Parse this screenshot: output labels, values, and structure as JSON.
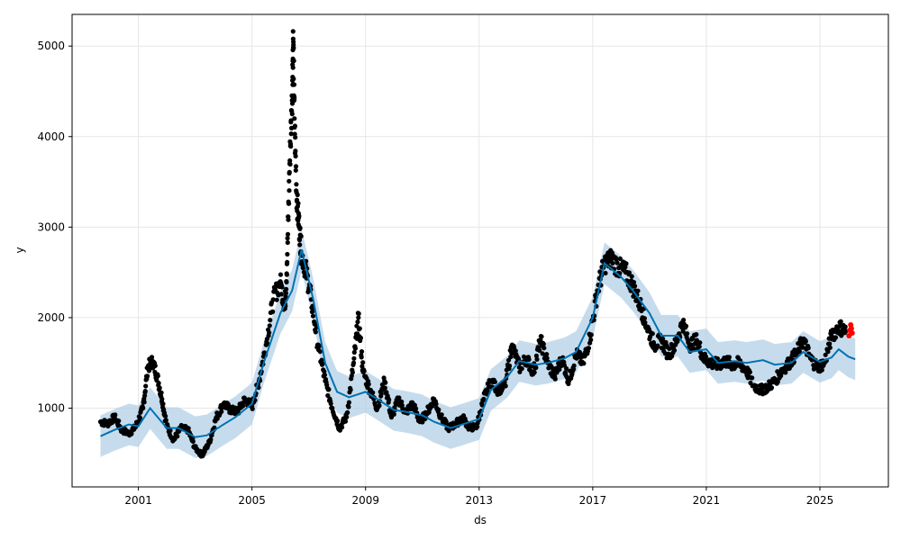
{
  "chart_data": {
    "type": "scatter",
    "xlabel": "ds",
    "ylabel": "y",
    "x_range": [
      "1998-09-01",
      "2027-06-01"
    ],
    "y_range": [
      130,
      5350
    ],
    "x_ticks": [
      {
        "date": "2001-01-01",
        "label": "2001"
      },
      {
        "date": "2005-01-01",
        "label": "2005"
      },
      {
        "date": "2009-01-01",
        "label": "2009"
      },
      {
        "date": "2013-01-01",
        "label": "2013"
      },
      {
        "date": "2017-01-01",
        "label": "2017"
      },
      {
        "date": "2021-01-01",
        "label": "2021"
      },
      {
        "date": "2025-01-01",
        "label": "2025"
      }
    ],
    "y_ticks": [
      1000,
      2000,
      3000,
      4000,
      5000
    ],
    "grid": true,
    "legend": "none",
    "colors": {
      "observed": "#000000",
      "forecast_line": "#0072B2",
      "uncertainty_band": "#AECDE6",
      "recent_points": "#FF0000",
      "grid": "#E6E6E6"
    },
    "series": [
      {
        "name": "",
        "kind": "forecast",
        "points": [
          [
            "1999-09-01",
            690
          ],
          [
            "2000-03-01",
            760
          ],
          [
            "2000-09-01",
            820
          ],
          [
            "2001-01-01",
            800
          ],
          [
            "2001-06-01",
            1000
          ],
          [
            "2002-01-01",
            780
          ],
          [
            "2002-06-01",
            780
          ],
          [
            "2003-01-01",
            680
          ],
          [
            "2003-06-01",
            700
          ],
          [
            "2004-01-01",
            820
          ],
          [
            "2004-06-01",
            900
          ],
          [
            "2005-01-01",
            1050
          ],
          [
            "2005-06-01",
            1500
          ],
          [
            "2006-01-01",
            2050
          ],
          [
            "2006-06-01",
            2300
          ],
          [
            "2006-10-01",
            2750
          ],
          [
            "2007-03-01",
            2200
          ],
          [
            "2007-08-01",
            1500
          ],
          [
            "2008-01-01",
            1180
          ],
          [
            "2008-06-01",
            1120
          ],
          [
            "2009-01-01",
            1180
          ],
          [
            "2009-06-01",
            1100
          ],
          [
            "2010-01-01",
            980
          ],
          [
            "2010-06-01",
            960
          ],
          [
            "2011-01-01",
            920
          ],
          [
            "2011-06-01",
            850
          ],
          [
            "2012-01-01",
            780
          ],
          [
            "2012-06-01",
            820
          ],
          [
            "2013-01-01",
            880
          ],
          [
            "2013-06-01",
            1200
          ],
          [
            "2014-01-01",
            1350
          ],
          [
            "2014-06-01",
            1520
          ],
          [
            "2015-01-01",
            1480
          ],
          [
            "2015-06-01",
            1500
          ],
          [
            "2016-01-01",
            1550
          ],
          [
            "2016-06-01",
            1620
          ],
          [
            "2017-01-01",
            2000
          ],
          [
            "2017-06-01",
            2600
          ],
          [
            "2018-01-01",
            2450
          ],
          [
            "2018-06-01",
            2300
          ],
          [
            "2019-01-01",
            2050
          ],
          [
            "2019-06-01",
            1800
          ],
          [
            "2020-01-01",
            1800
          ],
          [
            "2020-06-01",
            1620
          ],
          [
            "2021-01-01",
            1650
          ],
          [
            "2021-06-01",
            1500
          ],
          [
            "2022-01-01",
            1520
          ],
          [
            "2022-06-01",
            1500
          ],
          [
            "2023-01-01",
            1530
          ],
          [
            "2023-06-01",
            1480
          ],
          [
            "2024-01-01",
            1500
          ],
          [
            "2024-06-01",
            1620
          ],
          [
            "2025-01-01",
            1510
          ],
          [
            "2025-06-01",
            1560
          ],
          [
            "2025-09-01",
            1650
          ],
          [
            "2026-01-01",
            1570
          ],
          [
            "2026-04-01",
            1540
          ]
        ],
        "band_width": 230
      },
      {
        "name": "",
        "kind": "observed",
        "points": [
          [
            "1999-09-01",
            850
          ],
          [
            "1999-12-01",
            830
          ],
          [
            "2000-03-01",
            900
          ],
          [
            "2000-06-01",
            760
          ],
          [
            "2000-09-01",
            720
          ],
          [
            "2000-12-01",
            800
          ],
          [
            "2001-03-01",
            1000
          ],
          [
            "2001-05-01",
            1450
          ],
          [
            "2001-07-01",
            1520
          ],
          [
            "2001-09-01",
            1350
          ],
          [
            "2001-11-01",
            1100
          ],
          [
            "2002-01-01",
            800
          ],
          [
            "2002-04-01",
            650
          ],
          [
            "2002-07-01",
            780
          ],
          [
            "2002-10-01",
            760
          ],
          [
            "2003-01-01",
            560
          ],
          [
            "2003-04-01",
            480
          ],
          [
            "2003-07-01",
            620
          ],
          [
            "2003-10-01",
            900
          ],
          [
            "2004-01-01",
            1050
          ],
          [
            "2004-04-01",
            980
          ],
          [
            "2004-07-01",
            960
          ],
          [
            "2004-10-01",
            1100
          ],
          [
            "2005-01-01",
            1020
          ],
          [
            "2005-04-01",
            1300
          ],
          [
            "2005-07-01",
            1700
          ],
          [
            "2005-10-01",
            2200
          ],
          [
            "2006-01-01",
            2400
          ],
          [
            "2006-03-01",
            2100
          ],
          [
            "2006-04-01",
            2700
          ],
          [
            "2006-05-01",
            3700
          ],
          [
            "2006-06-01",
            4400
          ],
          [
            "2006-06-15",
            5080
          ],
          [
            "2006-07-01",
            4200
          ],
          [
            "2006-08-01",
            3300
          ],
          [
            "2006-09-01",
            3000
          ],
          [
            "2006-10-01",
            2700
          ],
          [
            "2006-12-01",
            2500
          ],
          [
            "2007-02-01",
            2200
          ],
          [
            "2007-05-01",
            1700
          ],
          [
            "2007-08-01",
            1300
          ],
          [
            "2007-11-01",
            1000
          ],
          [
            "2008-02-01",
            780
          ],
          [
            "2008-05-01",
            900
          ],
          [
            "2008-08-01",
            1500
          ],
          [
            "2008-10-01",
            2000
          ],
          [
            "2008-12-01",
            1400
          ],
          [
            "2009-03-01",
            1200
          ],
          [
            "2009-06-01",
            1000
          ],
          [
            "2009-09-01",
            1300
          ],
          [
            "2009-12-01",
            900
          ],
          [
            "2010-03-01",
            1100
          ],
          [
            "2010-06-01",
            950
          ],
          [
            "2010-09-01",
            1050
          ],
          [
            "2010-12-01",
            850
          ],
          [
            "2011-03-01",
            950
          ],
          [
            "2011-06-01",
            1100
          ],
          [
            "2011-09-01",
            900
          ],
          [
            "2011-12-01",
            780
          ],
          [
            "2012-03-01",
            820
          ],
          [
            "2012-06-01",
            900
          ],
          [
            "2012-09-01",
            780
          ],
          [
            "2012-12-01",
            800
          ],
          [
            "2013-03-01",
            1100
          ],
          [
            "2013-06-01",
            1300
          ],
          [
            "2013-09-01",
            1200
          ],
          [
            "2013-12-01",
            1250
          ],
          [
            "2014-03-01",
            1700
          ],
          [
            "2014-06-01",
            1450
          ],
          [
            "2014-09-01",
            1550
          ],
          [
            "2014-12-01",
            1400
          ],
          [
            "2015-03-01",
            1750
          ],
          [
            "2015-06-01",
            1500
          ],
          [
            "2015-09-01",
            1350
          ],
          [
            "2015-12-01",
            1550
          ],
          [
            "2016-03-01",
            1300
          ],
          [
            "2016-06-01",
            1600
          ],
          [
            "2016-09-01",
            1500
          ],
          [
            "2016-12-01",
            1800
          ],
          [
            "2017-03-01",
            2300
          ],
          [
            "2017-06-01",
            2600
          ],
          [
            "2017-09-01",
            2650
          ],
          [
            "2017-12-01",
            2550
          ],
          [
            "2018-03-01",
            2500
          ],
          [
            "2018-06-01",
            2350
          ],
          [
            "2018-09-01",
            2150
          ],
          [
            "2018-12-01",
            1900
          ],
          [
            "2019-03-01",
            1700
          ],
          [
            "2019-06-01",
            1750
          ],
          [
            "2019-09-01",
            1600
          ],
          [
            "2019-12-01",
            1700
          ],
          [
            "2020-03-01",
            1950
          ],
          [
            "2020-06-01",
            1700
          ],
          [
            "2020-09-01",
            1750
          ],
          [
            "2020-12-01",
            1550
          ],
          [
            "2021-03-01",
            1500
          ],
          [
            "2021-06-01",
            1480
          ],
          [
            "2021-09-01",
            1520
          ],
          [
            "2021-12-01",
            1480
          ],
          [
            "2022-03-01",
            1500
          ],
          [
            "2022-06-01",
            1420
          ],
          [
            "2022-09-01",
            1250
          ],
          [
            "2022-12-01",
            1200
          ],
          [
            "2023-03-01",
            1230
          ],
          [
            "2023-06-01",
            1300
          ],
          [
            "2023-09-01",
            1420
          ],
          [
            "2023-12-01",
            1500
          ],
          [
            "2024-03-01",
            1600
          ],
          [
            "2024-06-01",
            1750
          ],
          [
            "2024-09-01",
            1550
          ],
          [
            "2024-12-01",
            1450
          ],
          [
            "2025-03-01",
            1500
          ],
          [
            "2025-06-01",
            1800
          ],
          [
            "2025-09-01",
            1900
          ],
          [
            "2025-12-01",
            1850
          ]
        ]
      },
      {
        "name": "",
        "kind": "recent",
        "points": [
          [
            "2026-01-10",
            1800
          ],
          [
            "2026-01-20",
            1860
          ],
          [
            "2026-02-01",
            1920
          ],
          [
            "2026-02-10",
            1880
          ],
          [
            "2026-02-20",
            1830
          ]
        ]
      }
    ]
  }
}
